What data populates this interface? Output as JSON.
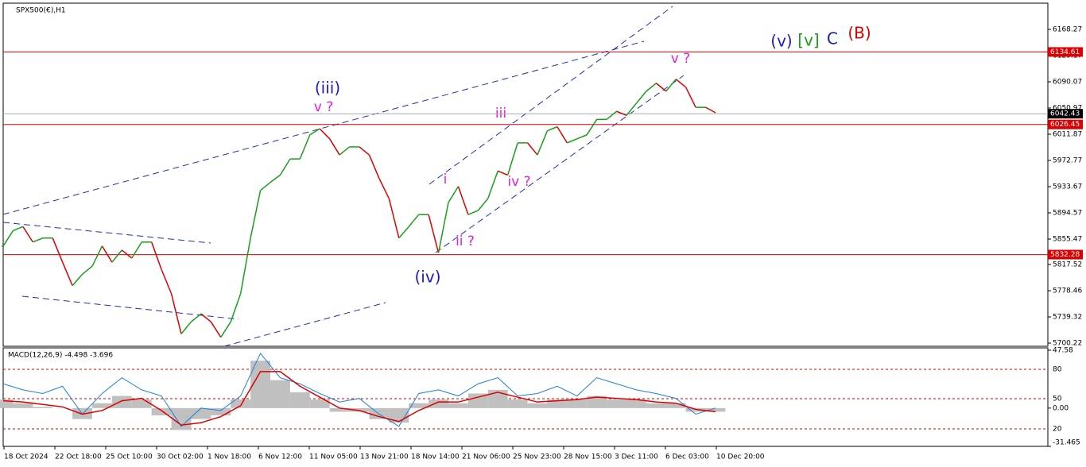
{
  "chart_data": [
    {
      "type": "line",
      "title": "SPX500(€),H1",
      "values": [
        5845,
        5868,
        5874,
        5851,
        5857,
        5857,
        5821,
        5786,
        5803,
        5815,
        5845,
        5821,
        5839,
        5827,
        5851,
        5851,
        5810,
        5774,
        5714,
        5732,
        5744,
        5732,
        5709,
        5732,
        5774,
        5857,
        5928,
        5940,
        5951,
        5975,
        5975,
        6011,
        6020,
        6005,
        5981,
        5993,
        5993,
        5981,
        5946,
        5916,
        5857,
        5874,
        5892,
        5892,
        5835,
        5910,
        5934,
        5892,
        5898,
        5916,
        5957,
        5951,
        5999,
        5999,
        5981,
        6017,
        6023,
        5999,
        6005,
        6011,
        6034,
        6034,
        6046,
        6040,
        6058,
        6076,
        6088,
        6076,
        6094,
        6082,
        6052,
        6052,
        6044
      ],
      "up_color": "#1a9e1a",
      "down_color": "#dd0000",
      "ylim": [
        5695.5,
        6207.4
      ],
      "yticks": [
        6168.27,
        6129.17,
        6090.07,
        6050.97,
        6011.87,
        5972.77,
        5933.67,
        5894.57,
        5855.47,
        5817.52,
        5778.46,
        5739.32,
        5700.22
      ],
      "xticks": [
        "18 Oct 2024",
        "22 Oct 18:00",
        "25 Oct 10:00",
        "30 Oct 02:00",
        "1 Nov 18:00",
        "6 Nov 12:00",
        "11 Nov 05:00",
        "13 Nov 21:00",
        "18 Nov 14:00",
        "21 Nov 06:00",
        "25 Nov 23:00",
        "28 Nov 15:00",
        "3 Dec 11:00",
        "6 Dec 03:00",
        "10 Dec 20:00"
      ],
      "hlines": [
        {
          "value": 6134.61,
          "color": "#dd0000"
        },
        {
          "value": 6026.45,
          "color": "#dd0000"
        },
        {
          "value": 5832.28,
          "color": "#dd0000"
        },
        {
          "value": 6042.43,
          "color": "#000000"
        }
      ],
      "annotations": [
        "(iii)",
        "v ?",
        "(iv)",
        "i",
        "ii ?",
        "iii",
        "iv ?",
        "v ?",
        "(v)",
        "[v]",
        "C",
        "(B)"
      ]
    },
    {
      "type": "macd",
      "title": "MACD(12,26,9) -4.498 -3.696",
      "histogram": [
        7,
        4,
        1,
        0,
        -9,
        4,
        10,
        7,
        -6,
        -18,
        -9,
        -6,
        7,
        39,
        23,
        13,
        7,
        -3,
        -3,
        -9,
        -12,
        4,
        7,
        4,
        12,
        15,
        7,
        4,
        7,
        7,
        10,
        7,
        7,
        4,
        4,
        -3,
        -3
      ],
      "signal": [
        6,
        5,
        3,
        1,
        -5,
        -2,
        6,
        8,
        -2,
        -14,
        -12,
        -7,
        2,
        30,
        30,
        18,
        9,
        0,
        -2,
        -7,
        -11,
        -2,
        5,
        5,
        9,
        13,
        9,
        5,
        6,
        7,
        9,
        8,
        7,
        5,
        4,
        -1,
        -3
      ],
      "line": [
        20,
        15,
        12,
        18,
        -5,
        12,
        25,
        15,
        10,
        -15,
        0,
        -2,
        10,
        45,
        25,
        20,
        12,
        5,
        8,
        -5,
        -15,
        12,
        15,
        10,
        20,
        25,
        10,
        12,
        18,
        10,
        25,
        20,
        15,
        12,
        8,
        -5,
        0
      ],
      "histogram_color": "#c0c0c0",
      "signal_color": "#dd0000",
      "line_color": "#1e7fd8",
      "ylim": [
        -31.465,
        47.58
      ],
      "yticks": [
        47.58,
        {
          "value": 0,
          "label": "0.00"
        },
        -31.465
      ],
      "level_labels": [
        "80",
        "50",
        "20"
      ]
    }
  ]
}
